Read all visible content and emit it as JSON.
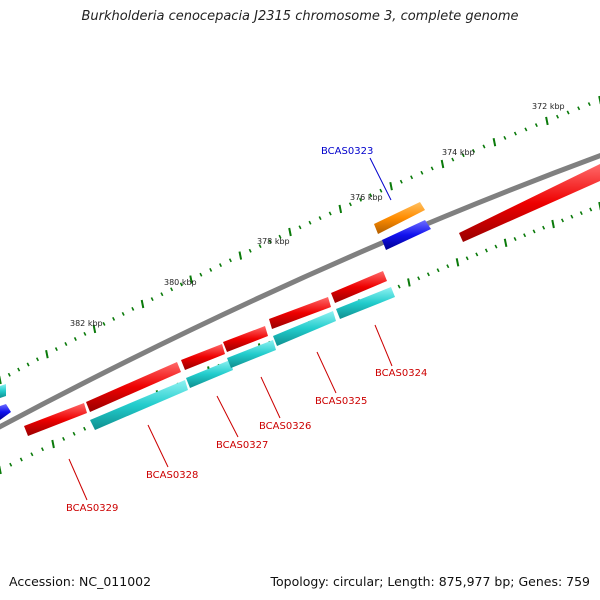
{
  "title": "Burkholderia cenocepacia J2315 chromosome 3, complete genome",
  "footer": {
    "accession": "Accession: NC_011002",
    "summary": "Topology: circular; Length: 875,977 bp; Genes: 759"
  },
  "scale_labels": [
    "372 kbp",
    "374 kbp",
    "376 kbp",
    "378 kbp",
    "380 kbp",
    "382 kbp"
  ],
  "gene_labels": [
    {
      "id": "BCAS0323",
      "color": "#0000cc"
    },
    {
      "id": "BCAS0324",
      "color": "#cc0000"
    },
    {
      "id": "BCAS0325",
      "color": "#cc0000"
    },
    {
      "id": "BCAS0326",
      "color": "#cc0000"
    },
    {
      "id": "BCAS0327",
      "color": "#cc0000"
    },
    {
      "id": "BCAS0328",
      "color": "#cc0000"
    },
    {
      "id": "BCAS0329",
      "color": "#cc0000"
    }
  ],
  "colors": {
    "backbone": "#808080",
    "cds_red": "#ee0000",
    "cds_cyan": "#22cccc",
    "cds_blue": "#1111ee",
    "cds_orange": "#ff8c00",
    "ticks": "#0a7a0a"
  }
}
